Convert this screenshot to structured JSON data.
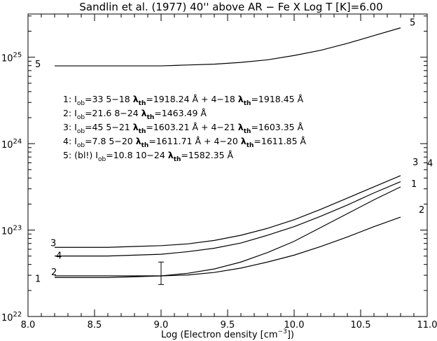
{
  "chart_data": {
    "type": "line",
    "title": "Sandlin et al. (1977)  40'' above AR − Fe X  Log T [K]=6.00",
    "xlabel": "Log (Electron density [cm",
    "xlabel_exp": "−3",
    "xlabel_end": "])",
    "xlim": [
      8.0,
      11.0
    ],
    "ylim_log10": [
      22,
      25.5
    ],
    "y_scale": "log",
    "x_ticks": [
      "8.0",
      "8.5",
      "9.0",
      "9.5",
      "10.0",
      "10.5",
      "11.0"
    ],
    "y_ticks": [
      {
        "base": "10",
        "exp": "22",
        "value": 22
      },
      {
        "base": "10",
        "exp": "23",
        "value": 23
      },
      {
        "base": "10",
        "exp": "24",
        "value": 24
      },
      {
        "base": "10",
        "exp": "25",
        "value": 25
      }
    ],
    "x": [
      8.2,
      8.4,
      8.6,
      8.8,
      9.0,
      9.2,
      9.4,
      9.6,
      9.8,
      10.0,
      10.2,
      10.4,
      10.6,
      10.8
    ],
    "series": [
      {
        "name": "1",
        "log10_values": [
          22.45,
          22.45,
          22.45,
          22.46,
          22.47,
          22.5,
          22.55,
          22.63,
          22.74,
          22.87,
          23.03,
          23.19,
          23.35,
          23.5
        ]
      },
      {
        "name": "2",
        "log10_values": [
          22.47,
          22.47,
          22.47,
          22.47,
          22.47,
          22.48,
          22.51,
          22.56,
          22.63,
          22.71,
          22.81,
          22.92,
          23.04,
          23.15
        ]
      },
      {
        "name": "3",
        "log10_values": [
          22.8,
          22.8,
          22.8,
          22.81,
          22.82,
          22.84,
          22.88,
          22.94,
          23.02,
          23.12,
          23.24,
          23.37,
          23.5,
          23.63
        ]
      },
      {
        "name": "4",
        "log10_values": [
          22.7,
          22.7,
          22.7,
          22.71,
          22.72,
          22.75,
          22.79,
          22.85,
          22.94,
          23.04,
          23.16,
          23.29,
          23.43,
          23.56
        ]
      },
      {
        "name": "5",
        "log10_values": [
          24.9,
          24.9,
          24.9,
          24.9,
          24.9,
          24.91,
          24.92,
          24.94,
          24.97,
          25.02,
          25.08,
          25.16,
          25.25,
          25.34
        ]
      }
    ],
    "curve_labels": [
      {
        "name": "1",
        "left": "1",
        "right": "1"
      },
      {
        "name": "2",
        "left": "2",
        "right": "2"
      },
      {
        "name": "3",
        "left": "3",
        "right": "3"
      },
      {
        "name": "4",
        "left": "4",
        "right": "4"
      },
      {
        "name": "5",
        "left": "5",
        "right": "5"
      }
    ],
    "error_bar": {
      "x": 9.0,
      "y_low_log10": 22.37,
      "y_high_log10": 22.63
    },
    "legend": [
      {
        "prefix": "1: I",
        "sub": "ob",
        "rest": "=33   5−18 ",
        "lam": "λ",
        "lamsub": "th",
        "tail": "=1918.24 Å + 4−18 ",
        "lam2": "λ",
        "lamsub2": "th",
        "tail2": "=1918.45 Å"
      },
      {
        "prefix": "2: I",
        "sub": "ob",
        "rest": "=21.6  8−24 ",
        "lam": "λ",
        "lamsub": "th",
        "tail": "=1463.49 Å",
        "lam2": "",
        "lamsub2": "",
        "tail2": ""
      },
      {
        "prefix": "3: I",
        "sub": "ob",
        "rest": "=45   5−21 ",
        "lam": "λ",
        "lamsub": "th",
        "tail": "=1603.21 Å + 4−21 ",
        "lam2": "λ",
        "lamsub2": "th",
        "tail2": "=1603.35 Å"
      },
      {
        "prefix": "4: I",
        "sub": "ob",
        "rest": "=7.8   5−20 ",
        "lam": "λ",
        "lamsub": "th",
        "tail": "=1611.71 Å + 4−20 ",
        "lam2": "λ",
        "lamsub2": "th",
        "tail2": "=1611.85 Å"
      },
      {
        "prefix": "5: (bl!) I",
        "sub": "ob",
        "rest": "=10.8  10−24 ",
        "lam": "λ",
        "lamsub": "th",
        "tail": "=1582.35 Å",
        "lam2": "",
        "lamsub2": "",
        "tail2": ""
      }
    ],
    "grid": false
  }
}
